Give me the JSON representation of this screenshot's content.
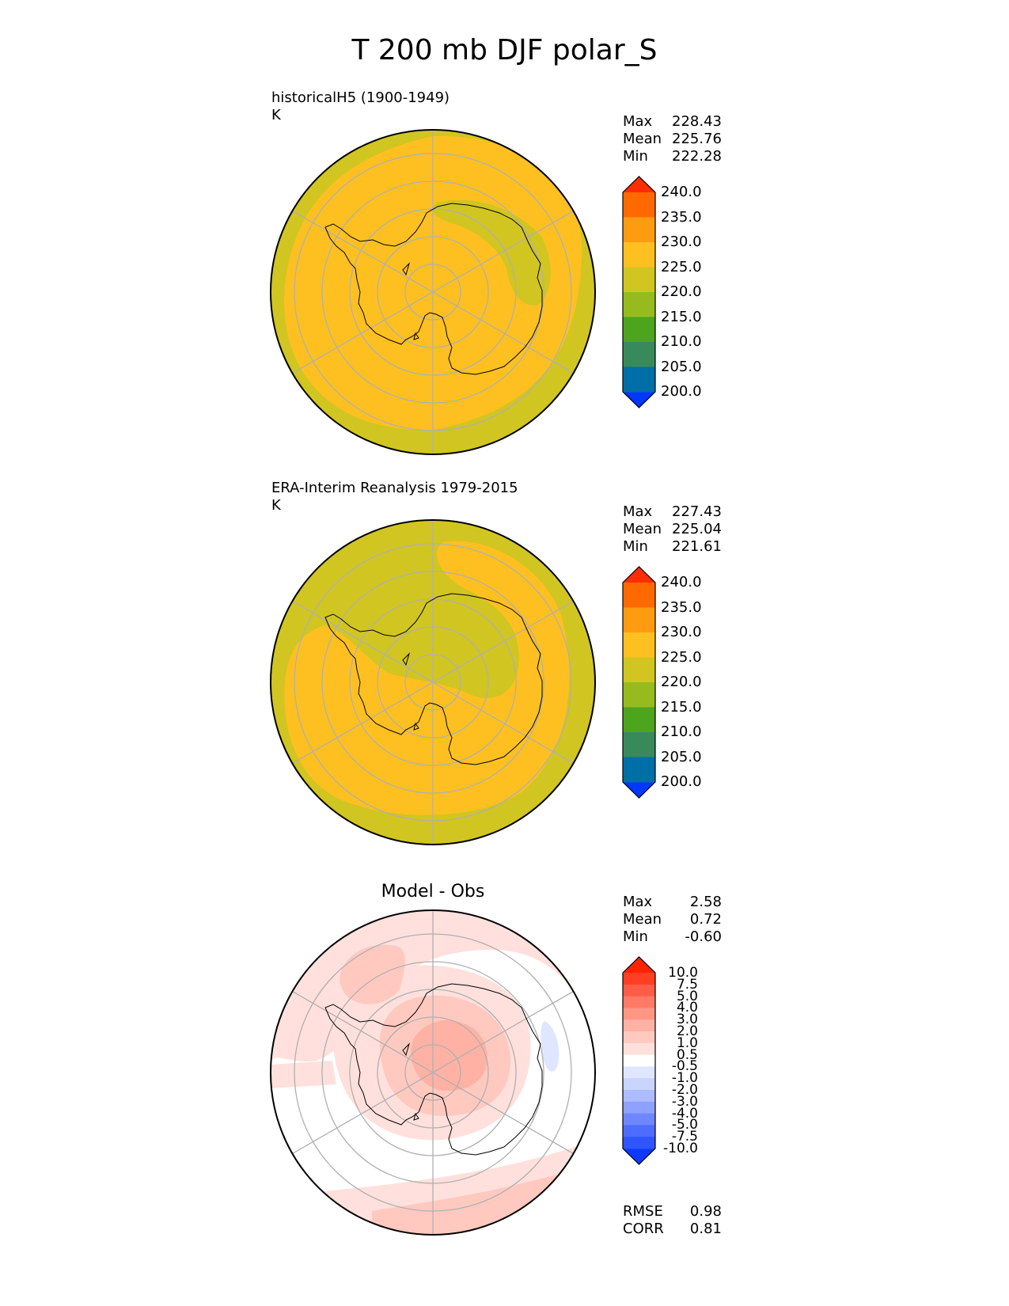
{
  "title": "T 200 mb DJF polar_S",
  "colors": {
    "abs_levels": [
      "#0037ff",
      "#006fa8",
      "#388a5a",
      "#4ca51c",
      "#97bb1e",
      "#d1c521",
      "#fdc020",
      "#ff9b11",
      "#ff6a00",
      "#ff2d00"
    ],
    "diff_levels": [
      "#0d3aff",
      "#2f55ff",
      "#4e6dff",
      "#6e87ff",
      "#8ea1ff",
      "#aebbff",
      "#c9d4ff",
      "#dfe6ff",
      "#ffffff",
      "#ffe0dc",
      "#ffc9c0",
      "#ffb1a4",
      "#ff9684",
      "#ff7a65",
      "#ff5c46",
      "#ff3f23",
      "#ff2400"
    ],
    "grid": "#b0b0b0",
    "coast": "#000000"
  },
  "panels": [
    {
      "id": "model",
      "title": "historicalH5 (1900-1949)",
      "units": "K",
      "stats": [
        {
          "label": "Max",
          "value": "228.43"
        },
        {
          "label": "Mean",
          "value": "225.76"
        },
        {
          "label": "Min",
          "value": "222.28"
        }
      ],
      "colorbar_ticks": [
        "240.0",
        "235.0",
        "230.0",
        "225.0",
        "220.0",
        "215.0",
        "210.0",
        "205.0",
        "200.0"
      ]
    },
    {
      "id": "obs",
      "title": "ERA-Interim Reanalysis 1979-2015",
      "units": "K",
      "stats": [
        {
          "label": "Max",
          "value": "227.43"
        },
        {
          "label": "Mean",
          "value": "225.04"
        },
        {
          "label": "Min",
          "value": "221.61"
        }
      ],
      "colorbar_ticks": [
        "240.0",
        "235.0",
        "230.0",
        "225.0",
        "220.0",
        "215.0",
        "210.0",
        "205.0",
        "200.0"
      ]
    },
    {
      "id": "diff",
      "title": "Model - Obs",
      "stats": [
        {
          "label": "Max",
          "value": "2.58"
        },
        {
          "label": "Mean",
          "value": "0.72"
        },
        {
          "label": "Min",
          "value": "-0.60"
        }
      ],
      "colorbar_ticks": [
        "10.0",
        "7.5",
        "5.0",
        "4.0",
        "3.0",
        "2.0",
        "1.0",
        "0.5",
        "-0.5",
        "-1.0",
        "-2.0",
        "-3.0",
        "-4.0",
        "-5.0",
        "-7.5",
        "-10.0"
      ],
      "metrics": [
        {
          "label": "RMSE",
          "value": "0.98"
        },
        {
          "label": "CORR",
          "value": "0.81"
        }
      ]
    }
  ],
  "chart_data": [
    {
      "type": "heatmap",
      "title": "historicalH5 (1900-1949)",
      "projection": "south polar stereographic",
      "units": "K",
      "levels": [
        200,
        205,
        210,
        215,
        220,
        225,
        230,
        235,
        240
      ],
      "extend": "both",
      "max": 228.43,
      "mean": 225.76,
      "min": 222.28,
      "dominant_range": [
        225,
        230
      ],
      "grid": true
    },
    {
      "type": "heatmap",
      "title": "ERA-Interim Reanalysis 1979-2015",
      "projection": "south polar stereographic",
      "units": "K",
      "levels": [
        200,
        205,
        210,
        215,
        220,
        225,
        230,
        235,
        240
      ],
      "extend": "both",
      "max": 227.43,
      "mean": 225.04,
      "min": 221.61,
      "dominant_range": [
        220,
        230
      ],
      "grid": true
    },
    {
      "type": "heatmap",
      "title": "Model - Obs",
      "projection": "south polar stereographic",
      "levels": [
        -10.0,
        -7.5,
        -5.0,
        -4.0,
        -3.0,
        -2.0,
        -1.0,
        -0.5,
        0.5,
        1.0,
        2.0,
        3.0,
        4.0,
        5.0,
        7.5,
        10.0
      ],
      "extend": "both",
      "max": 2.58,
      "mean": 0.72,
      "min": -0.6,
      "rmse": 0.98,
      "corr": 0.81,
      "grid": true
    }
  ]
}
